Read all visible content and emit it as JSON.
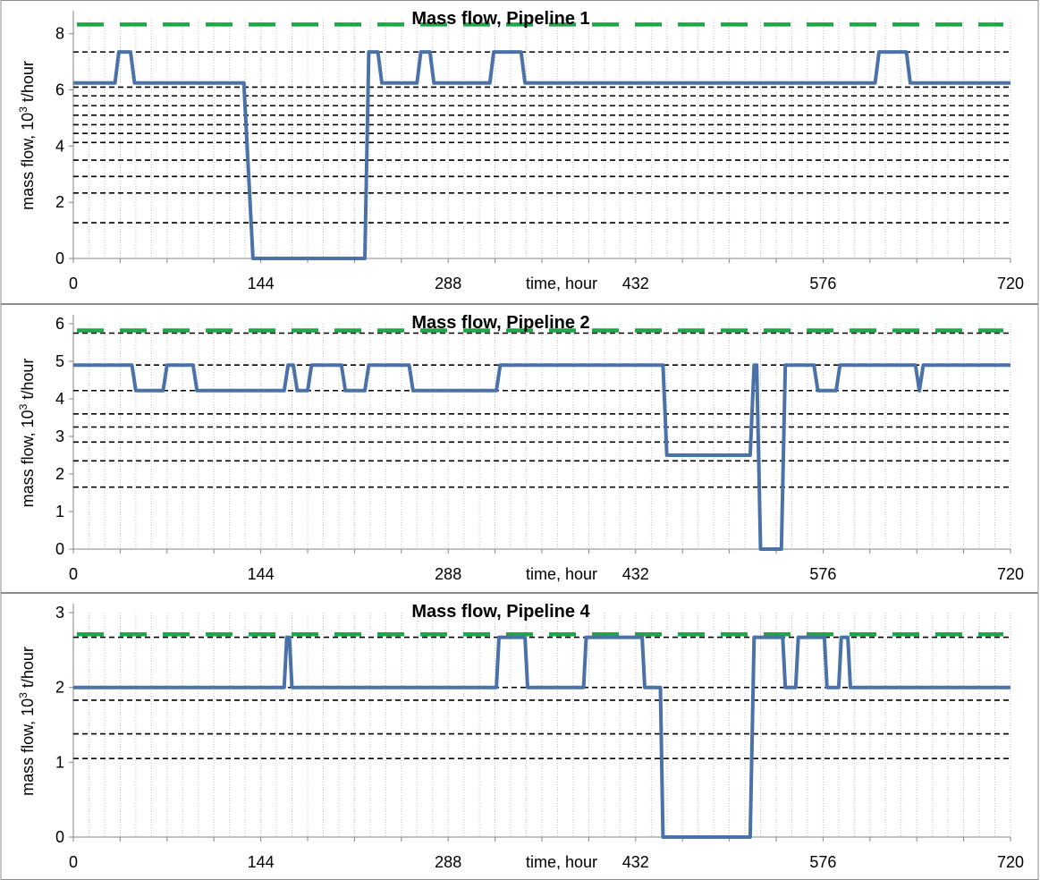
{
  "chart_data": [
    {
      "type": "line",
      "title": "Mass flow, Pipeline 1",
      "xlabel": "time, hour",
      "ylabel": "mass flow, 10³ t/hour",
      "ylabel_parts": [
        "mass flow, 10",
        "3",
        " t/hour"
      ],
      "xlim": [
        0,
        720
      ],
      "ylim": [
        0,
        8.5
      ],
      "x_ticks": [
        0,
        144,
        288,
        432,
        576,
        720
      ],
      "x_tick_labels": [
        "0",
        "144",
        "288",
        "432",
        "576",
        "720"
      ],
      "y_ticks": [
        0,
        2,
        4,
        6,
        8
      ],
      "y_tick_labels": [
        "0",
        "2",
        "4",
        "6",
        "8"
      ],
      "reference_lines": [
        1.27,
        2.33,
        2.92,
        3.5,
        4.13,
        4.45,
        4.76,
        5.1,
        5.44,
        5.79,
        6.1,
        7.35
      ],
      "limit_line": 8.33,
      "x": [
        0,
        32,
        35,
        44,
        47,
        128,
        131,
        138,
        224,
        227,
        234,
        237,
        264,
        267,
        274,
        277,
        320,
        323,
        344,
        347,
        616,
        619,
        640,
        643,
        730
      ],
      "values": [
        6.25,
        6.25,
        7.35,
        7.35,
        6.25,
        6.25,
        6.25,
        0,
        0,
        7.35,
        7.35,
        6.25,
        6.25,
        7.35,
        7.35,
        6.25,
        6.25,
        7.35,
        7.35,
        6.25,
        6.25,
        7.35,
        7.35,
        6.25,
        6.25
      ],
      "colors": {
        "series": "#4a72a8",
        "limit": "#1fa64a",
        "reference": "#000000"
      },
      "grid": true
    },
    {
      "type": "line",
      "title": "Mass flow, Pipeline 2",
      "xlabel": "time, hour",
      "ylabel": "mass flow, 10³ t/hour",
      "ylabel_parts": [
        "mass flow, 10",
        "3",
        " t/hour"
      ],
      "xlim": [
        0,
        720
      ],
      "ylim": [
        0,
        6
      ],
      "x_ticks": [
        0,
        144,
        288,
        432,
        576,
        720
      ],
      "x_tick_labels": [
        "0",
        "144",
        "288",
        "432",
        "576",
        "720"
      ],
      "y_ticks": [
        0,
        1,
        2,
        3,
        4,
        5,
        6
      ],
      "y_tick_labels": [
        "0",
        "1",
        "2",
        "3",
        "4",
        "5",
        "6"
      ],
      "reference_lines": [
        1.65,
        2.35,
        2.85,
        3.25,
        3.6,
        4.22,
        4.9,
        5.75
      ],
      "limit_line": 5.82,
      "x": [
        0,
        45,
        48,
        69,
        72,
        92,
        95,
        162,
        165,
        169,
        172,
        180,
        183,
        188,
        191,
        206,
        209,
        224,
        227,
        234,
        237,
        258,
        261,
        325,
        328,
        453,
        456,
        520,
        523,
        525,
        528,
        544,
        547,
        569,
        572,
        586,
        589,
        647,
        650,
        653,
        730
      ],
      "values": [
        4.9,
        4.9,
        4.22,
        4.22,
        4.9,
        4.9,
        4.22,
        4.22,
        4.9,
        4.9,
        4.22,
        4.22,
        4.9,
        4.9,
        4.9,
        4.9,
        4.22,
        4.22,
        4.9,
        4.9,
        4.9,
        4.9,
        4.22,
        4.22,
        4.9,
        4.9,
        2.5,
        2.5,
        4.9,
        4.9,
        0,
        0,
        4.9,
        4.9,
        4.22,
        4.22,
        4.9,
        4.9,
        4.22,
        4.9,
        4.9
      ],
      "colors": {
        "series": "#4a72a8",
        "limit": "#1fa64a",
        "reference": "#000000"
      },
      "grid": true
    },
    {
      "type": "line",
      "title": "Mass flow, Pipeline 4",
      "xlabel": "time, hour",
      "ylabel": "mass flow, 10³ t/hour",
      "ylabel_parts": [
        "mass flow, 10",
        "3",
        " t/hour"
      ],
      "xlim": [
        0,
        720
      ],
      "ylim": [
        0,
        3
      ],
      "x_ticks": [
        0,
        144,
        288,
        432,
        576,
        720
      ],
      "x_tick_labels": [
        "0",
        "144",
        "288",
        "432",
        "576",
        "720"
      ],
      "y_ticks": [
        0,
        1,
        2,
        3
      ],
      "y_tick_labels": [
        "0",
        "1",
        "2",
        "3"
      ],
      "reference_lines": [
        1.05,
        1.38,
        1.83,
        2.0,
        2.67
      ],
      "limit_line": 2.71,
      "x": [
        0,
        162,
        164,
        166,
        168,
        325,
        327,
        347,
        349,
        392,
        394,
        437,
        439,
        451,
        453,
        520,
        523,
        545,
        547,
        555,
        557,
        577,
        579,
        588,
        590,
        595,
        597,
        607,
        609,
        730
      ],
      "values": [
        2.0,
        2.0,
        2.67,
        2.67,
        2.0,
        2.0,
        2.67,
        2.67,
        2.0,
        2.0,
        2.67,
        2.67,
        2.0,
        2.0,
        0,
        0,
        2.67,
        2.67,
        2.0,
        2.0,
        2.67,
        2.67,
        2.0,
        2.0,
        2.67,
        2.67,
        2.0,
        2.0,
        2.0,
        2.0
      ],
      "colors": {
        "series": "#4a72a8",
        "limit": "#1fa64a",
        "reference": "#000000"
      },
      "grid": true
    }
  ]
}
